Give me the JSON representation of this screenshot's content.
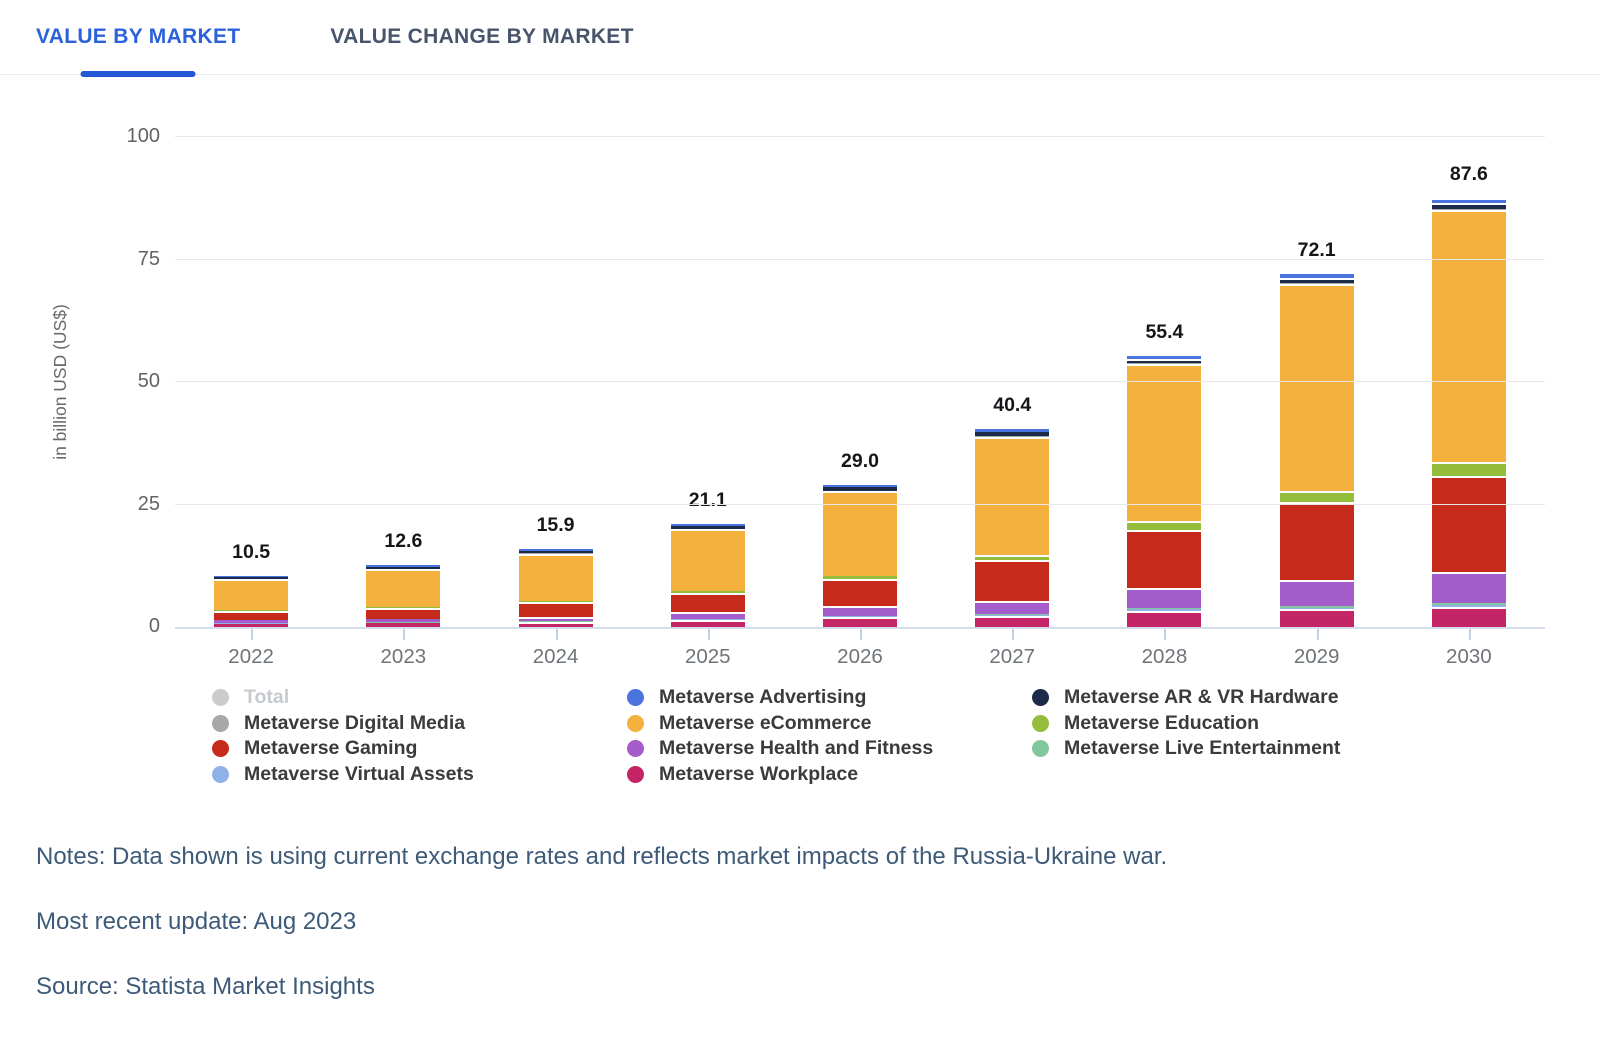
{
  "tabs": [
    {
      "label": "VALUE BY MARKET",
      "active": true
    },
    {
      "label": "VALUE CHANGE BY MARKET",
      "active": false
    }
  ],
  "chart_data": {
    "type": "bar",
    "stacked": true,
    "ylabel": "in billion USD (US$)",
    "ylim": [
      0,
      100
    ],
    "yticks": [
      0,
      25,
      50,
      75,
      100
    ],
    "grid": true,
    "legend_position": "bottom",
    "categories": [
      "2022",
      "2023",
      "2024",
      "2025",
      "2026",
      "2027",
      "2028",
      "2029",
      "2030"
    ],
    "totals": [
      10.5,
      12.6,
      15.9,
      21.1,
      29.0,
      40.4,
      55.4,
      72.1,
      87.6
    ],
    "stack_order": [
      "workplace",
      "virtual_assets",
      "live_entertainment",
      "health_fitness",
      "gaming",
      "education",
      "ecommerce",
      "digital_media",
      "ar_vr_hardware",
      "advertising"
    ],
    "series": [
      {
        "key": "advertising",
        "name": "Metaverse Advertising",
        "color": "#4a73dd",
        "values": [
          0.2,
          0.25,
          0.3,
          0.4,
          0.5,
          0.6,
          0.7,
          0.8,
          1.0
        ]
      },
      {
        "key": "ar_vr_hardware",
        "name": "Metaverse AR & VR Hardware",
        "color": "#1c2b4a",
        "values": [
          0.4,
          0.45,
          0.5,
          0.6,
          0.7,
          0.8,
          0.9,
          1.0,
          1.2
        ]
      },
      {
        "key": "digital_media",
        "name": "Metaverse Digital Media",
        "color": "#a8a8a8",
        "values": [
          0.1,
          0.1,
          0.1,
          0.1,
          0.1,
          0.2,
          0.2,
          0.3,
          0.3
        ]
      },
      {
        "key": "ecommerce",
        "name": "Metaverse eCommerce",
        "color": "#f4b13d",
        "values": [
          6.4,
          7.7,
          9.6,
          12.7,
          17.2,
          24.0,
          31.9,
          42.3,
          51.5
        ]
      },
      {
        "key": "education",
        "name": "Metaverse Education",
        "color": "#93bd3b",
        "values": [
          0.15,
          0.2,
          0.3,
          0.4,
          0.7,
          1.2,
          1.8,
          2.2,
          2.7
        ]
      },
      {
        "key": "gaming",
        "name": "Metaverse Gaming",
        "color": "#c52a1b",
        "values": [
          1.9,
          2.3,
          3.0,
          3.9,
          5.6,
          8.3,
          12.0,
          16.0,
          19.7
        ]
      },
      {
        "key": "health_fitness",
        "name": "Metaverse Health and Fitness",
        "color": "#a45cca",
        "values": [
          0.55,
          0.65,
          0.9,
          1.3,
          1.9,
          2.7,
          4.0,
          5.2,
          6.3
        ]
      },
      {
        "key": "live_entertainment",
        "name": "Metaverse Live Entertainment",
        "color": "#83c79c",
        "values": [
          0.05,
          0.05,
          0.1,
          0.1,
          0.1,
          0.2,
          0.3,
          0.4,
          0.5
        ]
      },
      {
        "key": "virtual_assets",
        "name": "Metaverse Virtual Assets",
        "color": "#8fb1e8",
        "values": [
          0.1,
          0.1,
          0.1,
          0.1,
          0.2,
          0.2,
          0.3,
          0.3,
          0.4
        ]
      },
      {
        "key": "workplace",
        "name": "Metaverse Workplace",
        "color": "#c32567",
        "values": [
          0.65,
          0.8,
          1.0,
          1.5,
          2.0,
          2.2,
          3.3,
          3.6,
          4.0
        ]
      }
    ],
    "total_legend": {
      "name": "Total",
      "color": "#cccccc"
    },
    "legend_columns": [
      [
        "total",
        "digital_media",
        "gaming",
        "virtual_assets"
      ],
      [
        "advertising",
        "ecommerce",
        "health_fitness",
        "workplace"
      ],
      [
        "ar_vr_hardware",
        "education",
        "live_entertainment"
      ]
    ]
  },
  "notes": {
    "line1": "Notes: Data shown is using current exchange rates and reflects market impacts of the Russia-Ukraine war.",
    "line2": "Most recent update: Aug 2023",
    "line3": "Source: Statista Market Insights"
  },
  "colors": {
    "accent_blue": "#2b62d9",
    "inactive_tab": "#47546b",
    "notes_text": "#3d5a78"
  }
}
